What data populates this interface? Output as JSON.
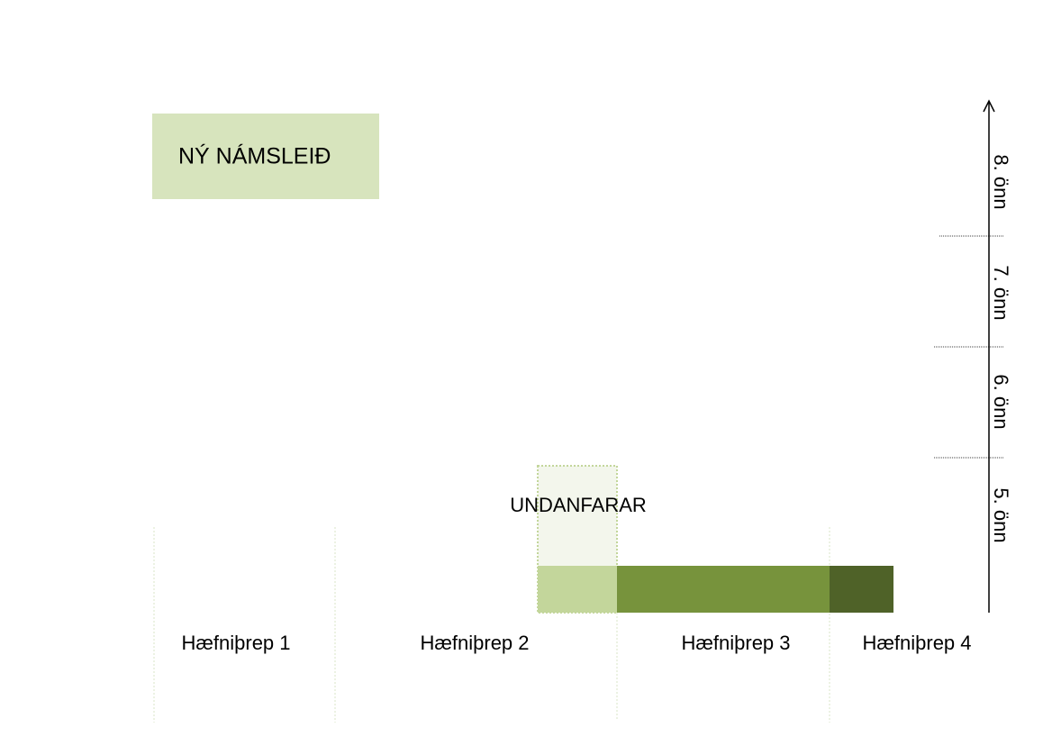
{
  "title": "NÝ NÁMSLEIÐ",
  "prerequisites": "UNDANFARAR",
  "levels": [
    "Hæfniþrep 1",
    "Hæfniþrep 2",
    "Hæfniþrep 3",
    "Hæfniþrep 4"
  ],
  "semesters": [
    "8. önn",
    "7. önn",
    "6. önn",
    "5. önn"
  ]
}
